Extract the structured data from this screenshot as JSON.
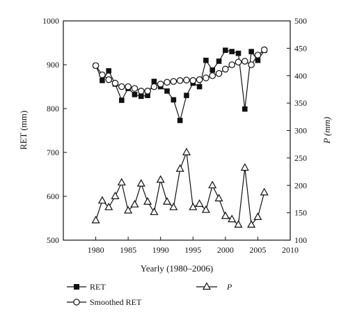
{
  "chart_data": {
    "type": "line",
    "xlabel": "Yearly (1980–2006)",
    "ylabel": "RET (mm)",
    "y2label": "P (mm)",
    "xlim": [
      1975,
      2010
    ],
    "ylim": [
      500,
      1000
    ],
    "y2lim": [
      100,
      500
    ],
    "xticks": [
      1980,
      1985,
      1990,
      1995,
      2000,
      2005,
      2010
    ],
    "yticks": [
      500,
      600,
      700,
      800,
      900,
      1000
    ],
    "y2ticks": [
      100,
      150,
      200,
      250,
      300,
      350,
      400,
      450,
      500
    ],
    "grid": false,
    "legend": "bottom",
    "x": [
      1980,
      1981,
      1982,
      1983,
      1984,
      1985,
      1986,
      1987,
      1988,
      1989,
      1990,
      1991,
      1992,
      1993,
      1994,
      1995,
      1996,
      1997,
      1998,
      1999,
      2000,
      2001,
      2002,
      2003,
      2004,
      2005,
      2006
    ],
    "series": [
      {
        "name": "RET",
        "axis": "left",
        "marker": "filled-square",
        "values": [
          898,
          864,
          886,
          856,
          819,
          846,
          832,
          828,
          830,
          862,
          850,
          840,
          820,
          773,
          830,
          858,
          850,
          910,
          888,
          908,
          933,
          930,
          926,
          799,
          930,
          910,
          933
        ]
      },
      {
        "name": "Smoothed RET",
        "axis": "left",
        "marker": "open-circle",
        "values": [
          898,
          877,
          866,
          858,
          850,
          850,
          846,
          840,
          840,
          850,
          856,
          860,
          862,
          864,
          865,
          864,
          866,
          870,
          875,
          880,
          890,
          900,
          906,
          908,
          900,
          922,
          934
        ]
      },
      {
        "name": "P",
        "axis": "right",
        "marker": "open-triangle",
        "values": [
          136,
          172,
          160,
          180,
          205,
          154,
          165,
          203,
          170,
          151,
          210,
          170,
          160,
          230,
          260,
          160,
          166,
          155,
          200,
          176,
          144,
          138,
          128,
          232,
          128,
          142,
          187
        ]
      }
    ]
  }
}
